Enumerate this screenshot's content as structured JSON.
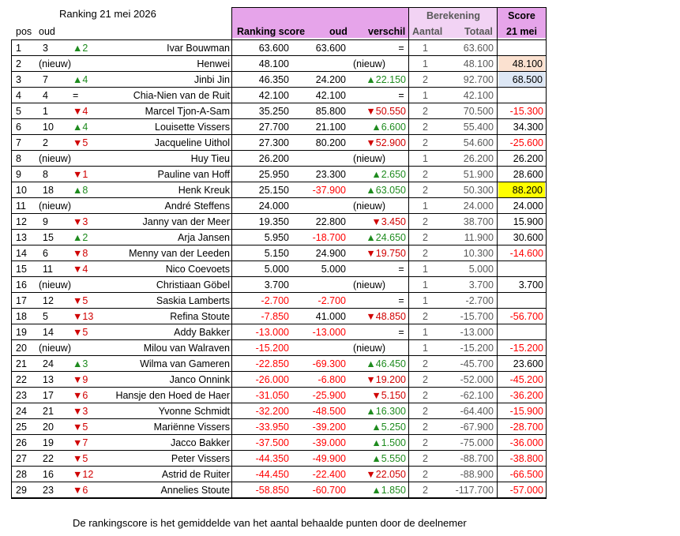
{
  "title": "Ranking  21 mei 2026",
  "headers": {
    "pos": "pos",
    "oud": "oud",
    "ranking_score": "Ranking score",
    "oud2": "oud",
    "verschil": "verschil",
    "berekening": "Berekening",
    "aantal": "Aantal",
    "totaal": "Totaal",
    "score": "Score",
    "score_date": "21 mei"
  },
  "rows": [
    {
      "pos": "1",
      "oud": "3",
      "move": "▲2",
      "name": "Ivar Bouwman",
      "score": "63.600",
      "oud_score": "63.600",
      "verschil": "=",
      "aantal": "1",
      "totaal": "63.600",
      "today": ""
    },
    {
      "pos": "2",
      "oud": "(nieuw)",
      "move": "",
      "name": "Henwei",
      "score": "48.100",
      "oud_score": "",
      "verschil": "(nieuw)",
      "aantal": "1",
      "totaal": "48.100",
      "today": "48.100"
    },
    {
      "pos": "3",
      "oud": "7",
      "move": "▲4",
      "name": "Jinbi Jin",
      "score": "46.350",
      "oud_score": "24.200",
      "verschil": "▲22.150",
      "aantal": "2",
      "totaal": "92.700",
      "today": "68.500"
    },
    {
      "pos": "4",
      "oud": "4",
      "move": "=",
      "name": "Chia-Nien van de Ruit",
      "score": "42.100",
      "oud_score": "42.100",
      "verschil": "=",
      "aantal": "1",
      "totaal": "42.100",
      "today": ""
    },
    {
      "pos": "5",
      "oud": "1",
      "move": "▼4",
      "name": "Marcel Tjon-A-Sam",
      "score": "35.250",
      "oud_score": "85.800",
      "verschil": "▼50.550",
      "aantal": "2",
      "totaal": "70.500",
      "today": "-15.300"
    },
    {
      "pos": "6",
      "oud": "10",
      "move": "▲4",
      "name": "Louisette Vissers",
      "score": "27.700",
      "oud_score": "21.100",
      "verschil": "▲6.600",
      "aantal": "2",
      "totaal": "55.400",
      "today": "34.300"
    },
    {
      "pos": "7",
      "oud": "2",
      "move": "▼5",
      "name": "Jacqueline Uithol",
      "score": "27.300",
      "oud_score": "80.200",
      "verschil": "▼52.900",
      "aantal": "2",
      "totaal": "54.600",
      "today": "-25.600"
    },
    {
      "pos": "8",
      "oud": "(nieuw)",
      "move": "",
      "name": "Huy Tieu",
      "score": "26.200",
      "oud_score": "",
      "verschil": "(nieuw)",
      "aantal": "1",
      "totaal": "26.200",
      "today": "26.200"
    },
    {
      "pos": "9",
      "oud": "8",
      "move": "▼1",
      "name": "Pauline van Hoff",
      "score": "25.950",
      "oud_score": "23.300",
      "verschil": "▲2.650",
      "aantal": "2",
      "totaal": "51.900",
      "today": "28.600"
    },
    {
      "pos": "10",
      "oud": "18",
      "move": "▲8",
      "name": "Henk Kreuk",
      "score": "25.150",
      "oud_score": "-37.900",
      "verschil": "▲63.050",
      "aantal": "2",
      "totaal": "50.300",
      "today": "88.200"
    },
    {
      "pos": "11",
      "oud": "(nieuw)",
      "move": "",
      "name": "André Steffens",
      "score": "24.000",
      "oud_score": "",
      "verschil": "(nieuw)",
      "aantal": "1",
      "totaal": "24.000",
      "today": "24.000"
    },
    {
      "pos": "12",
      "oud": "9",
      "move": "▼3",
      "name": "Janny van der Meer",
      "score": "19.350",
      "oud_score": "22.800",
      "verschil": "▼3.450",
      "aantal": "2",
      "totaal": "38.700",
      "today": "15.900"
    },
    {
      "pos": "13",
      "oud": "15",
      "move": "▲2",
      "name": "Arja Jansen",
      "score": "5.950",
      "oud_score": "-18.700",
      "verschil": "▲24.650",
      "aantal": "2",
      "totaal": "11.900",
      "today": "30.600"
    },
    {
      "pos": "14",
      "oud": "6",
      "move": "▼8",
      "name": "Menny van der Leeden",
      "score": "5.150",
      "oud_score": "24.900",
      "verschil": "▼19.750",
      "aantal": "2",
      "totaal": "10.300",
      "today": "-14.600"
    },
    {
      "pos": "15",
      "oud": "11",
      "move": "▼4",
      "name": "Nico Coevoets",
      "score": "5.000",
      "oud_score": "5.000",
      "verschil": "=",
      "aantal": "1",
      "totaal": "5.000",
      "today": ""
    },
    {
      "pos": "16",
      "oud": "(nieuw)",
      "move": "",
      "name": "Christiaan Göbel",
      "score": "3.700",
      "oud_score": "",
      "verschil": "(nieuw)",
      "aantal": "1",
      "totaal": "3.700",
      "today": "3.700"
    },
    {
      "pos": "17",
      "oud": "12",
      "move": "▼5",
      "name": "Saskia Lamberts",
      "score": "-2.700",
      "oud_score": "-2.700",
      "verschil": "=",
      "aantal": "1",
      "totaal": "-2.700",
      "today": ""
    },
    {
      "pos": "18",
      "oud": "5",
      "move": "▼13",
      "name": "Refina Stoute",
      "score": "-7.850",
      "oud_score": "41.000",
      "verschil": "▼48.850",
      "aantal": "2",
      "totaal": "-15.700",
      "today": "-56.700"
    },
    {
      "pos": "19",
      "oud": "14",
      "move": "▼5",
      "name": "Addy Bakker",
      "score": "-13.000",
      "oud_score": "-13.000",
      "verschil": "=",
      "aantal": "1",
      "totaal": "-13.000",
      "today": ""
    },
    {
      "pos": "20",
      "oud": "(nieuw)",
      "move": "",
      "name": "Milou van Walraven",
      "score": "-15.200",
      "oud_score": "",
      "verschil": "(nieuw)",
      "aantal": "1",
      "totaal": "-15.200",
      "today": "-15.200"
    },
    {
      "pos": "21",
      "oud": "24",
      "move": "▲3",
      "name": "Wilma van Gameren",
      "score": "-22.850",
      "oud_score": "-69.300",
      "verschil": "▲46.450",
      "aantal": "2",
      "totaal": "-45.700",
      "today": "23.600"
    },
    {
      "pos": "22",
      "oud": "13",
      "move": "▼9",
      "name": "Janco Onnink",
      "score": "-26.000",
      "oud_score": "-6.800",
      "verschil": "▼19.200",
      "aantal": "2",
      "totaal": "-52.000",
      "today": "-45.200"
    },
    {
      "pos": "23",
      "oud": "17",
      "move": "▼6",
      "name": "Hansje den Hoed de Haer",
      "score": "-31.050",
      "oud_score": "-25.900",
      "verschil": "▼5.150",
      "aantal": "2",
      "totaal": "-62.100",
      "today": "-36.200"
    },
    {
      "pos": "24",
      "oud": "21",
      "move": "▼3",
      "name": "Yvonne Schmidt",
      "score": "-32.200",
      "oud_score": "-48.500",
      "verschil": "▲16.300",
      "aantal": "2",
      "totaal": "-64.400",
      "today": "-15.900"
    },
    {
      "pos": "25",
      "oud": "20",
      "move": "▼5",
      "name": "Mariënne Vissers",
      "score": "-33.950",
      "oud_score": "-39.200",
      "verschil": "▲5.250",
      "aantal": "2",
      "totaal": "-67.900",
      "today": "-28.700"
    },
    {
      "pos": "26",
      "oud": "19",
      "move": "▼7",
      "name": "Jacco Bakker",
      "score": "-37.500",
      "oud_score": "-39.000",
      "verschil": "▲1.500",
      "aantal": "2",
      "totaal": "-75.000",
      "today": "-36.000"
    },
    {
      "pos": "27",
      "oud": "22",
      "move": "▼5",
      "name": "Peter Vissers",
      "score": "-44.350",
      "oud_score": "-49.900",
      "verschil": "▲5.550",
      "aantal": "2",
      "totaal": "-88.700",
      "today": "-38.800"
    },
    {
      "pos": "28",
      "oud": "16",
      "move": "▼12",
      "name": "Astrid de Ruiter",
      "score": "-44.450",
      "oud_score": "-22.400",
      "verschil": "▼22.050",
      "aantal": "2",
      "totaal": "-88.900",
      "today": "-66.500"
    },
    {
      "pos": "29",
      "oud": "23",
      "move": "▼6",
      "name": "Annelies Stoute",
      "score": "-58.850",
      "oud_score": "-60.700",
      "verschil": "▲1.850",
      "aantal": "2",
      "totaal": "-117.700",
      "today": "-57.000"
    }
  ],
  "highlights": {
    "row2_today": "#fbe1d0",
    "row3_today": "#dde7f5",
    "row10_today": "#ffff00"
  },
  "colors": {
    "header_pink": "#e6a4ea",
    "header_light_pink": "#f2d3f4",
    "negative": "#ff0000",
    "up": "#1e8b1e",
    "down": "#d00000"
  },
  "footnote": "De rankingscore is het gemiddelde van het aantal behaalde punten door de deelnemer"
}
